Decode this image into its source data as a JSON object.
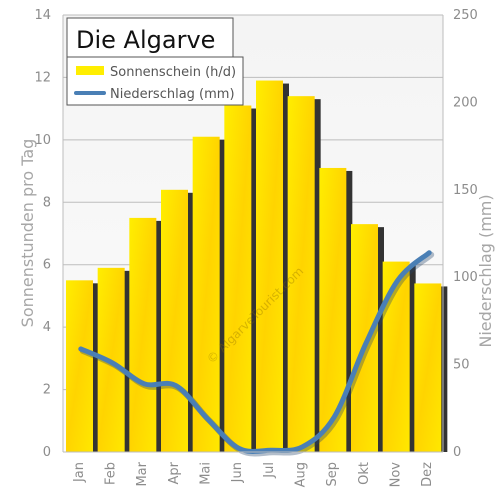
{
  "chart_data": {
    "type": "bar",
    "title": "Die Algarve",
    "categories": [
      "Jan",
      "Feb",
      "Mar",
      "Apr",
      "Mai",
      "Jun",
      "Jul",
      "Aug",
      "Sep",
      "Okt",
      "Nov",
      "Dez"
    ],
    "series": [
      {
        "name": "Sonnenschein (h/d)",
        "type": "bar",
        "axis": "left",
        "color": "#ffee00",
        "values": [
          5.5,
          5.9,
          7.5,
          8.4,
          10.1,
          11.1,
          11.9,
          11.4,
          9.1,
          7.3,
          6.1,
          5.4
        ]
      },
      {
        "name": "Niederschlag (mm)",
        "type": "line",
        "axis": "right",
        "color": "#4a7fb5",
        "values": [
          59,
          51,
          39,
          38,
          19,
          2,
          1,
          3,
          20,
          62,
          98,
          114
        ]
      }
    ],
    "ylabel": "Sonnenstunden pro Tag",
    "ylabel_right": "Niederschlag (mm)",
    "ylim": [
      0,
      14
    ],
    "ylim_right": [
      0,
      250
    ],
    "yticks": [
      "0",
      "2",
      "4",
      "6",
      "8",
      "10",
      "12",
      "14"
    ],
    "yticks_right": [
      "0",
      "50",
      "100",
      "150",
      "200",
      "250"
    ],
    "grid": true,
    "legend_position": "top-left",
    "watermark": "© AlgarveTourist.com"
  }
}
